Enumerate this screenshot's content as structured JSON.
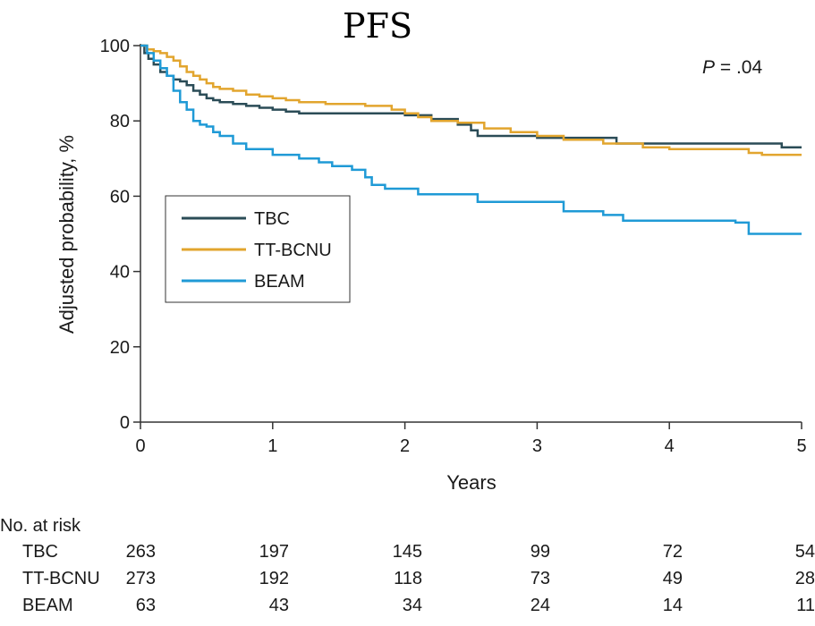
{
  "chart_data": {
    "type": "line",
    "title": "PFS",
    "xlabel": "Years",
    "ylabel": "Adjusted probability, %",
    "xlim": [
      0,
      5
    ],
    "ylim": [
      0,
      100
    ],
    "x_ticks": [
      "0",
      "1",
      "2",
      "3",
      "4",
      "5"
    ],
    "y_ticks": [
      "0",
      "20",
      "40",
      "60",
      "80",
      "100"
    ],
    "annotation": {
      "italic": "P",
      "text": " = .04"
    },
    "legend_placement": "middle-left",
    "grid": false,
    "series": [
      {
        "name": "TBC",
        "color": "#2b4c57",
        "x": [
          0,
          0.03,
          0.06,
          0.1,
          0.15,
          0.2,
          0.25,
          0.3,
          0.35,
          0.4,
          0.45,
          0.5,
          0.55,
          0.6,
          0.7,
          0.8,
          0.9,
          1.0,
          1.1,
          1.2,
          1.5,
          2.0,
          2.2,
          2.4,
          2.5,
          2.55,
          2.7,
          3.0,
          3.5,
          3.6,
          4.0,
          4.5,
          4.8,
          4.85,
          5.0
        ],
        "y": [
          100,
          98,
          96.5,
          95,
          93,
          92,
          91,
          90.5,
          89.5,
          88,
          87,
          86,
          85.5,
          85,
          84.5,
          84,
          83.5,
          83,
          82.5,
          82,
          82,
          81.5,
          80.5,
          79,
          77.5,
          76,
          76,
          75.5,
          75.5,
          74,
          74,
          74,
          74,
          73,
          73
        ]
      },
      {
        "name": "TT-BCNU",
        "color": "#e2a52e",
        "x": [
          0,
          0.05,
          0.1,
          0.15,
          0.2,
          0.25,
          0.3,
          0.35,
          0.4,
          0.45,
          0.5,
          0.55,
          0.6,
          0.7,
          0.8,
          0.9,
          1.0,
          1.1,
          1.2,
          1.4,
          1.7,
          1.9,
          2.0,
          2.1,
          2.2,
          2.4,
          2.6,
          2.8,
          3.0,
          3.2,
          3.5,
          3.8,
          4.0,
          4.4,
          4.6,
          4.7,
          5.0
        ],
        "y": [
          100,
          99,
          98.5,
          98,
          97,
          96,
          94.5,
          93,
          92,
          91,
          90,
          89,
          88.5,
          88,
          87,
          86.5,
          86,
          85.5,
          85,
          84.5,
          84,
          83,
          82,
          81,
          80,
          79.5,
          78,
          77,
          76,
          75,
          74,
          73,
          72.5,
          72.5,
          71.5,
          71,
          71
        ]
      },
      {
        "name": "BEAM",
        "color": "#1f9ad6",
        "x": [
          0,
          0.05,
          0.1,
          0.15,
          0.2,
          0.25,
          0.3,
          0.35,
          0.4,
          0.45,
          0.5,
          0.55,
          0.6,
          0.7,
          0.8,
          1.0,
          1.2,
          1.35,
          1.45,
          1.6,
          1.7,
          1.75,
          1.85,
          2.1,
          2.55,
          3.2,
          3.5,
          3.65,
          4.5,
          4.6,
          5.0
        ],
        "y": [
          100,
          98,
          96,
          94,
          92,
          88,
          85,
          83,
          80,
          79,
          78.5,
          77,
          76,
          74,
          72.5,
          71,
          70,
          69,
          68,
          67,
          65,
          63,
          62,
          60.5,
          58.5,
          56,
          55,
          53.5,
          53,
          50,
          50
        ]
      }
    ],
    "risk_table": {
      "header": "No. at risk",
      "rows": [
        {
          "label": "TBC",
          "values": [
            "263",
            "197",
            "145",
            "99",
            "72",
            "54"
          ]
        },
        {
          "label": "TT-BCNU",
          "values": [
            "273",
            "192",
            "118",
            "73",
            "49",
            "28"
          ]
        },
        {
          "label": "BEAM",
          "values": [
            "63",
            "43",
            "34",
            "24",
            "14",
            "11"
          ]
        }
      ]
    }
  }
}
